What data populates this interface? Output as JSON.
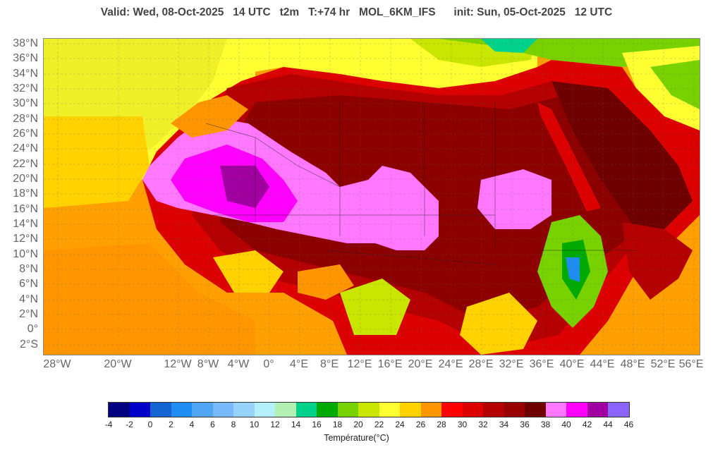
{
  "title": "Valid: Wed, 08-Oct-2025   14 UTC   t2m   T:+74 hr   MOL_6KM_IFS      init: Sun, 05-Oct-2025   12 UTC",
  "lat_labels": [
    "38°N",
    "36°N",
    "34°N",
    "32°N",
    "30°N",
    "28°N",
    "26°N",
    "24°N",
    "22°N",
    "20°N",
    "18°N",
    "16°N",
    "14°N",
    "12°N",
    "10°N",
    "8°N",
    "6°N",
    "4°N",
    "2°N",
    "0°",
    "2°S"
  ],
  "lon_labels": [
    "28°W",
    "20°W",
    "12°W",
    "8°W",
    "4°W",
    "0°",
    "4°E",
    "8°E",
    "12°E",
    "16°E",
    "20°E",
    "24°E",
    "28°E",
    "32°E",
    "36°E",
    "40°E",
    "44°E",
    "48°E",
    "52°E",
    "56°E"
  ],
  "colorbar": {
    "title": "Température(°C)",
    "ticks": [
      "-4",
      "-2",
      "0",
      "2",
      "4",
      "6",
      "8",
      "10",
      "12",
      "14",
      "16",
      "18",
      "20",
      "22",
      "24",
      "26",
      "28",
      "30",
      "32",
      "34",
      "36",
      "38",
      "40",
      "42",
      "44",
      "46"
    ],
    "colors": [
      "#000080",
      "#0000c8",
      "#1464d2",
      "#1e8cf0",
      "#50a5f5",
      "#78b9fa",
      "#96d2fa",
      "#b4f0fa",
      "#b4f0b4",
      "#00d28c",
      "#00aa00",
      "#78d200",
      "#c8e600",
      "#ffff32",
      "#ffd200",
      "#ff9600",
      "#ff0000",
      "#dc0000",
      "#b40000",
      "#960000",
      "#6e0000",
      "#ff78ff",
      "#ff00ff",
      "#a000a0",
      "#8c64ff"
    ]
  },
  "map_colors": {
    "ocean_warm": "#ffc800",
    "ocean_cool": "#ff9600",
    "land_hot": "#dc0000",
    "land_very_hot": "#8c0000",
    "desert_extreme": "#ff78ff",
    "desert_max": "#a000a0",
    "mediterranean": "#ffff32",
    "highland": "#78d200"
  }
}
